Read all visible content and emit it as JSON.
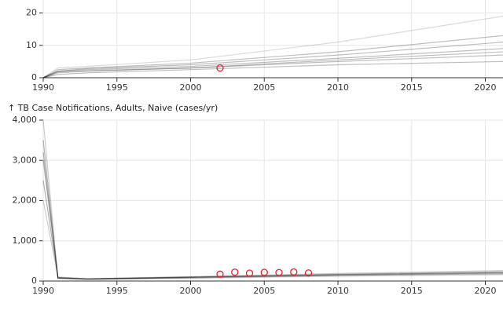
{
  "chart_data": [
    {
      "type": "line",
      "xlim": [
        1990,
        2021.2
      ],
      "xticks": [
        1990,
        1995,
        2000,
        2005,
        2010,
        2015,
        2020
      ],
      "ylim": [
        0,
        24
      ],
      "yticks": [
        0,
        10,
        20
      ],
      "grid": true,
      "series": [
        {
          "color": "#000000",
          "opacity": 0.25,
          "x": [
            1990,
            1991,
            1993,
            2000,
            2010,
            2021.2
          ],
          "values": [
            0,
            2,
            2.5,
            3.5,
            6,
            9
          ]
        },
        {
          "color": "#000000",
          "opacity": 0.25,
          "x": [
            1990,
            1991,
            1993,
            2000,
            2010,
            2021.2
          ],
          "values": [
            0,
            1.5,
            2,
            3,
            5,
            7
          ]
        },
        {
          "color": "#000000",
          "opacity": 0.25,
          "x": [
            1990,
            1991,
            1993,
            2000,
            2010,
            2021.2
          ],
          "values": [
            0,
            2.5,
            3,
            4.5,
            8,
            13
          ]
        },
        {
          "color": "#000000",
          "opacity": 0.25,
          "x": [
            1990,
            1991,
            1993,
            2000,
            2010,
            2021.2
          ],
          "values": [
            0,
            1,
            1.5,
            2.5,
            4,
            5
          ]
        },
        {
          "color": "#000000",
          "opacity": 0.25,
          "x": [
            1990,
            1991,
            1993,
            2000,
            2010,
            2021.2
          ],
          "values": [
            0,
            2,
            2.8,
            4,
            7,
            11
          ]
        },
        {
          "color": "#000000",
          "opacity": 0.15,
          "x": [
            1990,
            1991,
            1993,
            2000,
            2010,
            2021.2
          ],
          "values": [
            0,
            3,
            3.5,
            5.5,
            11,
            19
          ]
        },
        {
          "color": "#000000",
          "opacity": 0.25,
          "x": [
            1990,
            1991,
            1993,
            2000,
            2010,
            2021.2
          ],
          "values": [
            0,
            1.8,
            2.2,
            3,
            5.5,
            8
          ]
        },
        {
          "color": "#e8202a",
          "mode": "markers",
          "x": [
            2002
          ],
          "values": [
            3
          ]
        }
      ]
    },
    {
      "type": "line",
      "title": "↑ TB Case Notifications, Adults, Naive (cases/yr)",
      "xlim": [
        1990,
        2021.2
      ],
      "xticks": [
        1990,
        1995,
        2000,
        2005,
        2010,
        2015,
        2020
      ],
      "ylim": [
        0,
        4000
      ],
      "yticks": [
        0,
        {
          "value": 1000,
          "label": "1,000"
        },
        {
          "value": 2000,
          "label": "2,000"
        },
        {
          "value": 3000,
          "label": "3,000"
        },
        {
          "value": 4000,
          "label": "4,000"
        }
      ],
      "grid": true,
      "series": [
        {
          "color": "#000000",
          "opacity": 0.3,
          "x": [
            1990,
            1991,
            1993,
            2000,
            2010,
            2021.2
          ],
          "values": [
            3000,
            80,
            50,
            90,
            150,
            200
          ]
        },
        {
          "color": "#000000",
          "opacity": 0.3,
          "x": [
            1990,
            1991,
            1993,
            2000,
            2010,
            2021.2
          ],
          "values": [
            3500,
            70,
            45,
            80,
            140,
            180
          ]
        },
        {
          "color": "#000000",
          "opacity": 0.3,
          "x": [
            1990,
            1991,
            1993,
            2000,
            2010,
            2021.2
          ],
          "values": [
            2500,
            90,
            55,
            100,
            170,
            230
          ]
        },
        {
          "color": "#000000",
          "opacity": 0.2,
          "x": [
            1990,
            1991,
            1993,
            2000,
            2010,
            2021.2
          ],
          "values": [
            4000,
            60,
            40,
            70,
            120,
            160
          ]
        },
        {
          "color": "#000000",
          "opacity": 0.2,
          "x": [
            1990,
            1991,
            1993,
            2000,
            2010,
            2021.2
          ],
          "values": [
            2000,
            100,
            60,
            110,
            190,
            260
          ]
        },
        {
          "color": "#000000",
          "opacity": 0.3,
          "x": [
            1990,
            1991,
            1993,
            2000,
            2010,
            2021.2
          ],
          "values": [
            3200,
            75,
            50,
            95,
            160,
            210
          ]
        },
        {
          "color": "#e8202a",
          "mode": "markers",
          "x": [
            2002,
            2003,
            2004,
            2005,
            2006,
            2007,
            2008
          ],
          "values": [
            170,
            220,
            195,
            215,
            210,
            225,
            200
          ]
        }
      ]
    }
  ]
}
